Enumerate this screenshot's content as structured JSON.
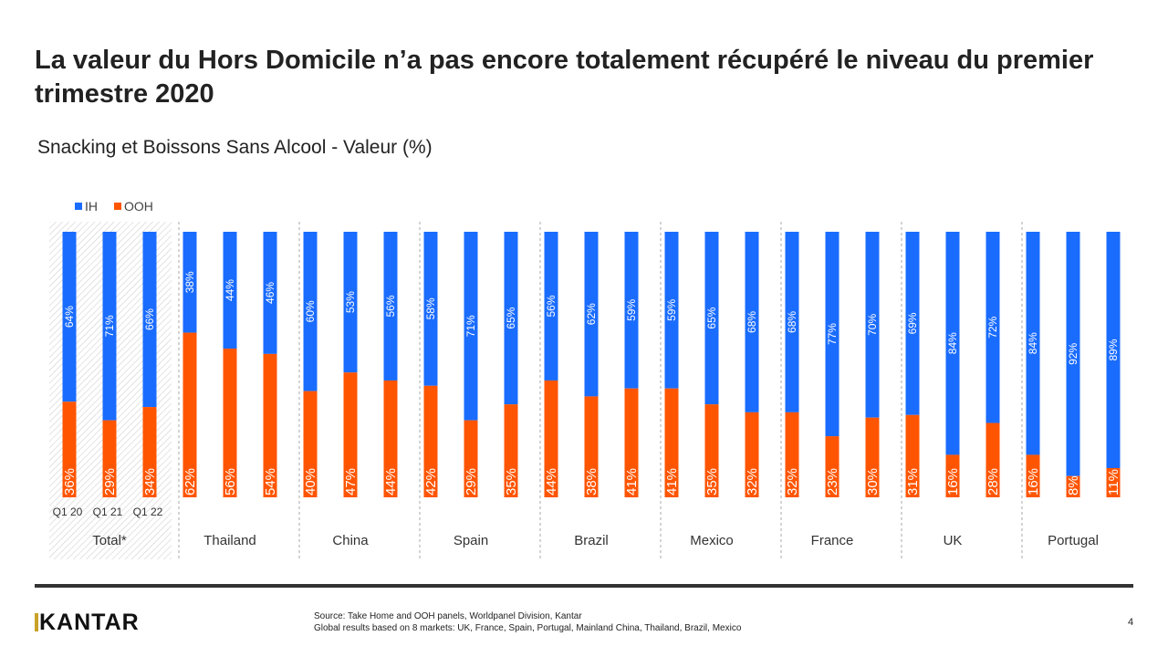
{
  "title": "La valeur du Hors Domicile n’a pas encore totalement récupéré le niveau du premier trimestre 2020",
  "subtitle": "Snacking et Boissons Sans Alcool - Valeur (%)",
  "footer": {
    "logo": "KANTAR",
    "source_line1": "Source: Take Home and OOH  panels, Worldpanel Division, Kantar",
    "source_line2": "Global results based on 8 markets: UK, France, Spain, Portugal, Mainland China, Thailand, Brazil, Mexico",
    "page": "4"
  },
  "chart_data": {
    "type": "bar",
    "stacked": true,
    "percent": true,
    "legend": "top-left",
    "colors": {
      "IH": "#1a6cff",
      "OOH": "#ff5500"
    },
    "groups": [
      "Total*",
      "Thailand",
      "China",
      "Spain",
      "Brazil",
      "Mexico",
      "France",
      "UK",
      "Portugal"
    ],
    "periods": [
      "Q1 20",
      "Q1 21",
      "Q1 22"
    ],
    "series": [
      {
        "name": "IH",
        "values": [
          [
            64,
            71,
            66
          ],
          [
            38,
            44,
            46
          ],
          [
            60,
            53,
            56
          ],
          [
            58,
            71,
            65
          ],
          [
            56,
            62,
            59
          ],
          [
            59,
            65,
            68
          ],
          [
            68,
            77,
            70
          ],
          [
            69,
            84,
            72
          ],
          [
            84,
            92,
            89
          ]
        ]
      },
      {
        "name": "OOH",
        "values": [
          [
            36,
            29,
            34
          ],
          [
            62,
            56,
            54
          ],
          [
            40,
            47,
            44
          ],
          [
            42,
            29,
            35
          ],
          [
            44,
            38,
            41
          ],
          [
            41,
            35,
            32
          ],
          [
            32,
            23,
            30
          ],
          [
            31,
            16,
            28
          ],
          [
            16,
            8,
            11
          ]
        ]
      }
    ]
  }
}
